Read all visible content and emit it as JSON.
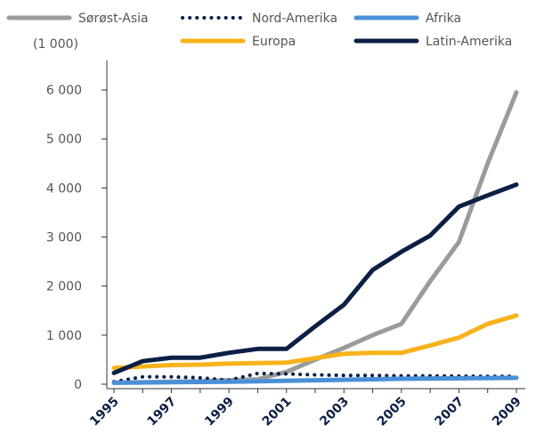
{
  "chart_data": {
    "type": "line",
    "y_axis_label": "(1 000)",
    "categories": [
      "1995",
      null,
      "1997",
      null,
      "1999",
      null,
      "2001",
      null,
      "2003",
      null,
      "2005",
      null,
      "2007",
      null,
      "2009"
    ],
    "series": [
      {
        "name": "Sørøst-Asia",
        "color": "#9b9b9b",
        "style": "solid",
        "values": [
          30,
          40,
          50,
          60,
          80,
          100,
          250,
          500,
          740,
          1000,
          1230,
          2100,
          2900,
          4500,
          5950
        ]
      },
      {
        "name": "Nord-Amerika",
        "color": "#0c1f45",
        "style": "dotted",
        "values": [
          50,
          150,
          150,
          130,
          80,
          220,
          210,
          190,
          180,
          180,
          170,
          170,
          165,
          160,
          160
        ]
      },
      {
        "name": "Afrika",
        "color": "#4a90d9",
        "style": "solid",
        "values": [
          30,
          35,
          40,
          45,
          50,
          60,
          70,
          80,
          90,
          100,
          110,
          115,
          120,
          125,
          130
        ]
      },
      {
        "name": "Europa",
        "color": "#f7b21b",
        "style": "solid",
        "values": [
          330,
          360,
          390,
          400,
          420,
          430,
          440,
          530,
          620,
          640,
          640,
          790,
          950,
          1230,
          1400
        ]
      },
      {
        "name": "Latin-Amerika",
        "color": "#0c1f45",
        "style": "solid",
        "values": [
          230,
          470,
          540,
          540,
          640,
          720,
          720,
          1180,
          1620,
          2330,
          2700,
          3030,
          3620,
          3850,
          4070
        ]
      }
    ],
    "ylim": [
      0,
      6600
    ],
    "yticks": [
      0,
      {
        "value": 1000,
        "label": "1 000"
      },
      {
        "value": 2000,
        "label": "2 000"
      },
      {
        "value": 3000,
        "label": "3 000"
      },
      {
        "value": 4000,
        "label": "4 000"
      },
      {
        "value": 5000,
        "label": "5 000"
      },
      {
        "value": 6000,
        "label": "6 000"
      }
    ]
  }
}
